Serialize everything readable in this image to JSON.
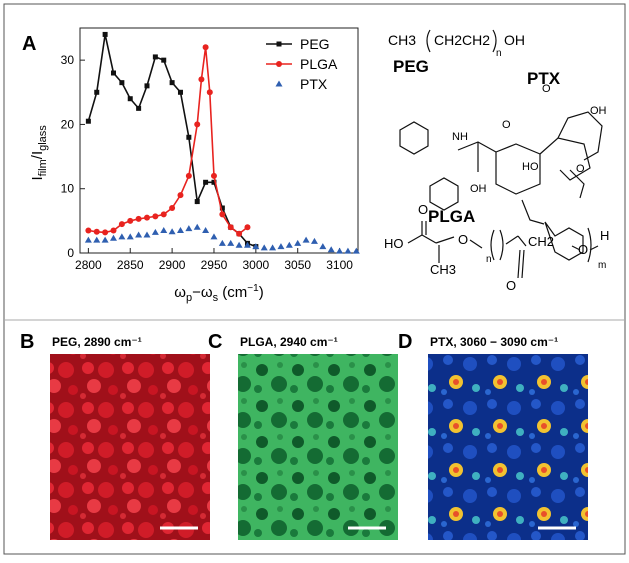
{
  "chart_data": {
    "type": "line",
    "ylabel": [
      "I",
      "film",
      "/I",
      "glass"
    ],
    "xlabel": [
      "ω",
      "p",
      "−ω",
      "s",
      " (cm",
      "−1",
      ")"
    ],
    "xlim": [
      2790,
      3122
    ],
    "ylim": [
      0,
      35
    ],
    "xticks": [
      2800,
      2850,
      2900,
      2950,
      3000,
      3050,
      3100
    ],
    "yticks": [
      0,
      10,
      20,
      30
    ],
    "legend": "upper right",
    "series": [
      {
        "name": "PEG",
        "color": "#111111",
        "marker": "square",
        "x": [
          2800,
          2810,
          2820,
          2830,
          2840,
          2850,
          2860,
          2870,
          2880,
          2890,
          2900,
          2910,
          2920,
          2930,
          2940,
          2950,
          2960,
          2970,
          2980,
          2990,
          3000
        ],
        "values": [
          20.5,
          25,
          34,
          28,
          26.5,
          24,
          22.5,
          26,
          30.5,
          30,
          26.5,
          25,
          18,
          8,
          11,
          11,
          7,
          4,
          3,
          1.5,
          1
        ]
      },
      {
        "name": "PLGA",
        "color": "#e8231f",
        "marker": "circle",
        "x": [
          2800,
          2810,
          2820,
          2830,
          2840,
          2850,
          2860,
          2870,
          2880,
          2890,
          2900,
          2910,
          2920,
          2930,
          2935,
          2940,
          2945,
          2950,
          2960,
          2970,
          2980,
          2990
        ],
        "values": [
          3.5,
          3.3,
          3.2,
          3.5,
          4.5,
          5,
          5.3,
          5.5,
          5.7,
          6,
          7,
          9,
          12,
          20,
          27,
          32,
          25,
          12,
          6,
          4,
          3,
          4
        ]
      },
      {
        "name": "PTX",
        "color": "#2f5fb0",
        "marker": "triangle",
        "x": [
          2800,
          2810,
          2820,
          2830,
          2840,
          2850,
          2860,
          2870,
          2880,
          2890,
          2900,
          2910,
          2920,
          2930,
          2940,
          2950,
          2960,
          2970,
          2980,
          2990,
          3000,
          3010,
          3020,
          3030,
          3040,
          3050,
          3060,
          3070,
          3080,
          3090,
          3100,
          3110,
          3120
        ],
        "values": [
          2,
          2,
          2,
          2.3,
          2.5,
          2.5,
          2.8,
          2.8,
          3.2,
          3.5,
          3.3,
          3.5,
          3.8,
          4,
          3.5,
          2.5,
          1.5,
          1.5,
          1.2,
          1.2,
          1,
          0.8,
          0.8,
          1,
          1.2,
          1.5,
          2,
          1.8,
          1,
          0.5,
          0.3,
          0.3,
          0.3
        ]
      }
    ]
  },
  "panel_a": "A",
  "structures": {
    "peg": {
      "ch3": "CH3",
      "repeat": "CH2CH2",
      "n": "n",
      "oh": "OH",
      "name": "PEG"
    },
    "ptx": {
      "name": "PTX",
      "nh": "NH",
      "oh1": "OH",
      "oh2": "OH",
      "ho": "HO",
      "ac1": "O",
      "ac2": "O",
      "o": "O"
    },
    "plga": {
      "name": "PLGA",
      "ho": "HO",
      "o1": "O",
      "o2": "O",
      "n": "n",
      "ch2": "CH2",
      "o3": "O",
      "m": "m",
      "h": "H",
      "ch3": "CH3",
      "o4": "O"
    }
  },
  "images": [
    {
      "label": "B",
      "title": "PEG, 2890 cm⁻¹"
    },
    {
      "label": "C",
      "title": "PLGA, 2940 cm⁻¹"
    },
    {
      "label": "D",
      "title": "PTX, 3060 − 3090 cm⁻¹"
    }
  ]
}
